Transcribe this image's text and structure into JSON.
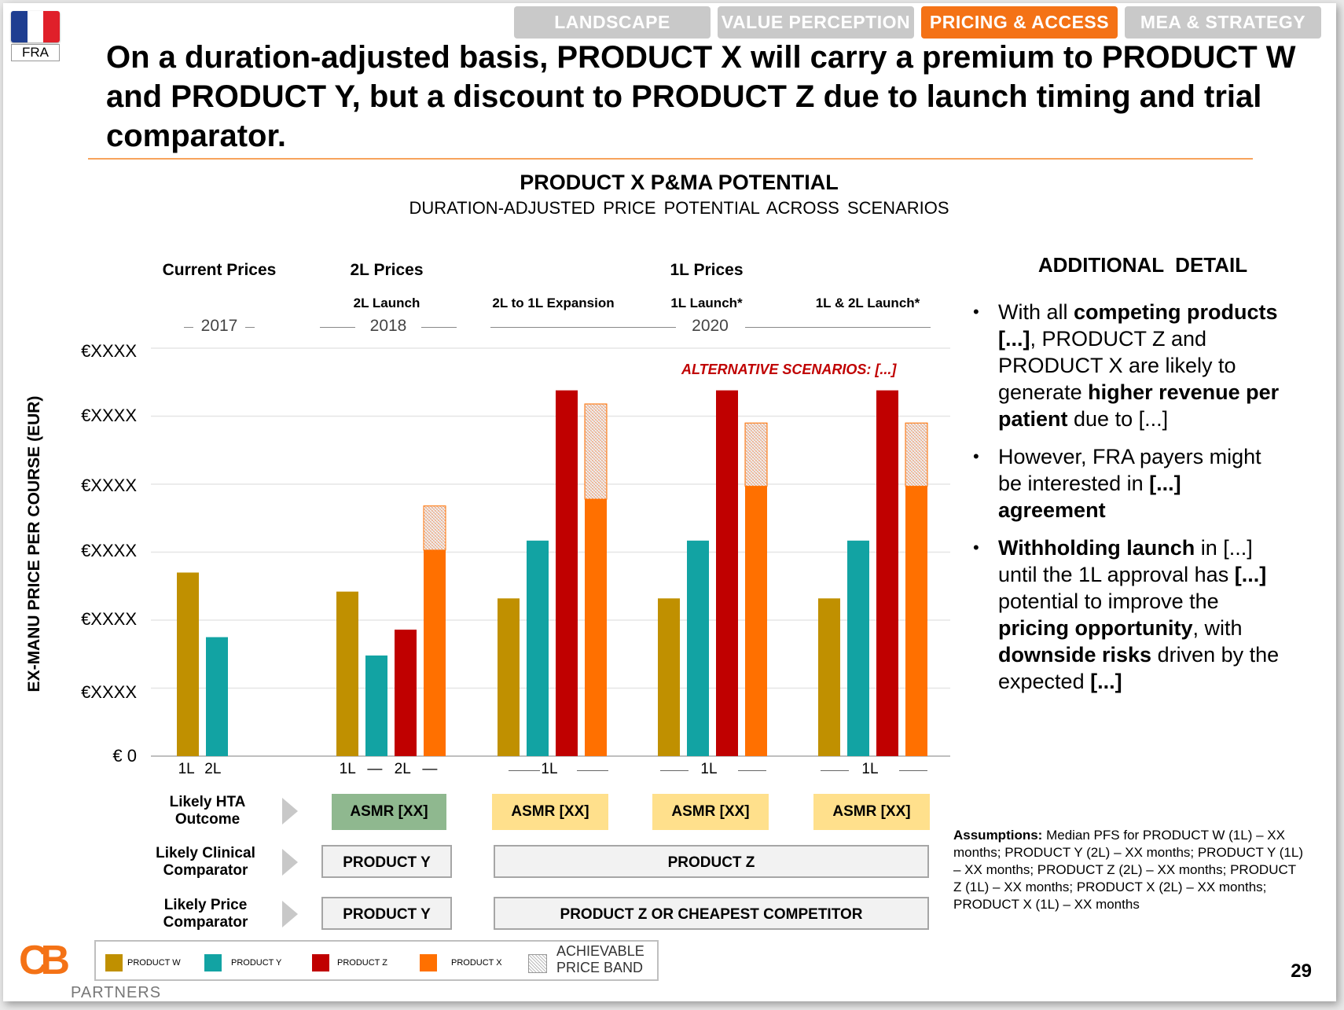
{
  "country": {
    "code": "FRA",
    "flag_colors": [
      "#1f3e91",
      "#ffffff",
      "#e0202a"
    ]
  },
  "tabs": [
    {
      "label": "LANDSCAPE",
      "active": false
    },
    {
      "label": "VALUE PERCEPTION",
      "active": false
    },
    {
      "label": "PRICING & ACCESS",
      "active": true
    },
    {
      "label": "MEA & STRATEGY",
      "active": false
    }
  ],
  "headline": "On a duration-adjusted basis, PRODUCT X will carry a premium to PRODUCT W and PRODUCT Y, but a discount to PRODUCT Z due to launch timing and trial comparator.",
  "chart_data": {
    "type": "bar",
    "title": "PRODUCT X P&MA POTENTIAL",
    "subtitle": "DURATION-ADJUSTED PRICE POTENTIAL ACROSS SCENARIOS",
    "ylabel": "EX-MANU PRICE PER COURSE (EUR)",
    "yticks": [
      "€ 0",
      "€XXXX",
      "€XXXX",
      "€XXXX",
      "€XXXX",
      "€XXXX",
      "€XXXX"
    ],
    "ylim": [
      0,
      6
    ],
    "grid": true,
    "colors": {
      "PRODUCT W": "#c09000",
      "PRODUCT Y": "#12a3a3",
      "PRODUCT Z": "#c00000",
      "PRODUCT X": "#ff7000"
    },
    "column_groups": [
      {
        "header": "Current Prices",
        "sub": "",
        "year": "2017"
      },
      {
        "header": "2L Prices",
        "sub": "2L Launch",
        "year": "2018"
      },
      {
        "header": "1L Prices",
        "sub": "",
        "year": "2020"
      }
    ],
    "scenarios": [
      {
        "name": "Current",
        "sub": "",
        "xlabel": "1L 2L",
        "bars": [
          {
            "series": "PRODUCT W",
            "value": 2.7
          },
          {
            "series": "PRODUCT Y",
            "value": 1.75
          }
        ]
      },
      {
        "name": "2L Launch",
        "sub": "2L Launch",
        "xlabel": "1L — 2L —",
        "bars": [
          {
            "series": "PRODUCT W",
            "value": 2.42
          },
          {
            "series": "PRODUCT Y",
            "value": 1.48
          },
          {
            "series": "PRODUCT Z",
            "value": 1.86
          },
          {
            "series": "PRODUCT X",
            "value": 3.03,
            "band_top": 3.68
          }
        ]
      },
      {
        "name": "2L to 1L Expansion",
        "sub": "2L to 1L Expansion",
        "xlabel": "1L",
        "bars": [
          {
            "series": "PRODUCT W",
            "value": 2.32
          },
          {
            "series": "PRODUCT Y",
            "value": 3.17
          },
          {
            "series": "PRODUCT Z",
            "value": 5.38
          },
          {
            "series": "PRODUCT X",
            "value": 3.78,
            "band_top": 5.18
          }
        ]
      },
      {
        "name": "1L Launch",
        "sub": "1L Launch*",
        "xlabel": "1L",
        "bars": [
          {
            "series": "PRODUCT W",
            "value": 2.32
          },
          {
            "series": "PRODUCT Y",
            "value": 3.17
          },
          {
            "series": "PRODUCT Z",
            "value": 5.38
          },
          {
            "series": "PRODUCT X",
            "value": 3.97,
            "band_top": 4.9
          }
        ]
      },
      {
        "name": "1L & 2L Launch",
        "sub": "1L & 2L Launch*",
        "xlabel": "1L",
        "bars": [
          {
            "series": "PRODUCT W",
            "value": 2.32
          },
          {
            "series": "PRODUCT Y",
            "value": 3.17
          },
          {
            "series": "PRODUCT Z",
            "value": 5.38
          },
          {
            "series": "PRODUCT X",
            "value": 3.97,
            "band_top": 4.9
          }
        ]
      }
    ],
    "annotation": "ALTERNATIVE SCENARIOS: [...]",
    "legend": [
      "PRODUCT W",
      "PRODUCT Y",
      "PRODUCT Z",
      "PRODUCT X",
      "ACHIEVABLE PRICE BAND"
    ]
  },
  "rows": {
    "hta_label": "Likely HTA Outcome",
    "hta": [
      "ASMR [XX]",
      "ASMR [XX]",
      "ASMR [XX]",
      "ASMR [XX]"
    ],
    "hta_colors": [
      "#8fb88f",
      "#ffe08c"
    ],
    "clinical_label": "Likely Clinical Comparator",
    "clinical": [
      "PRODUCT Y",
      "PRODUCT Z"
    ],
    "price_label": "Likely Price Comparator",
    "price": [
      "PRODUCT Y",
      "PRODUCT Z OR CHEAPEST COMPETITOR"
    ]
  },
  "additional": {
    "heading": "ADDITIONAL  DETAIL",
    "bullets": [
      [
        {
          "t": "With all ",
          "b": false
        },
        {
          "t": "competing products [...]",
          "b": true
        },
        {
          "t": ", PRODUCT Z and PRODUCT X are likely to generate ",
          "b": false
        },
        {
          "t": "higher revenue per patient",
          "b": true
        },
        {
          "t": " due to [...]",
          "b": false
        }
      ],
      [
        {
          "t": "However, FRA payers might be interested in ",
          "b": false
        },
        {
          "t": "[...] agreement",
          "b": true
        }
      ],
      [
        {
          "t": "Withholding launch",
          "b": true
        },
        {
          "t": " in [...] until the 1L approval has ",
          "b": false
        },
        {
          "t": "[...]",
          "b": true
        },
        {
          "t": " potential to improve the ",
          "b": false
        },
        {
          "t": "pricing opportunity",
          "b": true
        },
        {
          "t": ", with ",
          "b": false
        },
        {
          "t": "downside risks",
          "b": true
        },
        {
          "t": " driven by the expected ",
          "b": false
        },
        {
          "t": "[...]",
          "b": true
        }
      ]
    ]
  },
  "assumptions": {
    "label": "Assumptions:",
    "text": "Median PFS for PRODUCT W (1L) – XX months; PRODUCT Y (2L) – XX months; PRODUCT Y (1L) – XX months; PRODUCT Z (2L) – XX months; PRODUCT Z (1L) – XX months; PRODUCT X (2L) – XX months; PRODUCT X (1L) – XX months"
  },
  "logo": {
    "letters": "CB",
    "word": "PARTNERS",
    "color": "#f47216"
  },
  "page_number": "29"
}
